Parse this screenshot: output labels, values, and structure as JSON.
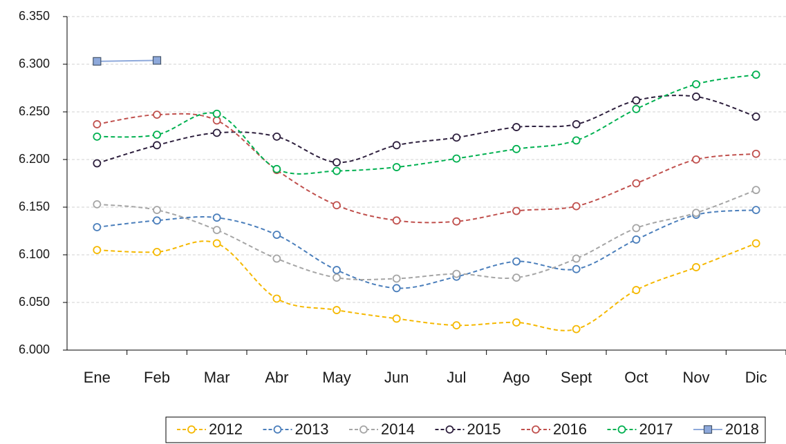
{
  "chart_data": {
    "type": "line",
    "categories": [
      "Ene",
      "Feb",
      "Mar",
      "Abr",
      "May",
      "Jun",
      "Jul",
      "Ago",
      "Sept",
      "Oct",
      "Nov",
      "Dic"
    ],
    "series": [
      {
        "name": "2012",
        "color": "#f5b800",
        "marker": "circle",
        "dashed": true,
        "values": [
          6.105,
          6.103,
          6.112,
          6.054,
          6.042,
          6.033,
          6.026,
          6.029,
          6.022,
          6.063,
          6.087,
          6.112
        ]
      },
      {
        "name": "2013",
        "color": "#4a7ebb",
        "marker": "circle",
        "dashed": true,
        "values": [
          6.129,
          6.136,
          6.139,
          6.121,
          6.084,
          6.065,
          6.077,
          6.093,
          6.085,
          6.116,
          6.142,
          6.147
        ]
      },
      {
        "name": "2014",
        "color": "#a5a5a5",
        "marker": "circle",
        "dashed": true,
        "values": [
          6.153,
          6.147,
          6.126,
          6.096,
          6.076,
          6.075,
          6.08,
          6.076,
          6.096,
          6.128,
          6.144,
          6.168
        ]
      },
      {
        "name": "2015",
        "color": "#2d1f3d",
        "marker": "circle",
        "dashed": true,
        "values": [
          6.196,
          6.215,
          6.228,
          6.224,
          6.197,
          6.215,
          6.223,
          6.234,
          6.237,
          6.262,
          6.266,
          6.245
        ]
      },
      {
        "name": "2016",
        "color": "#c0504d",
        "marker": "circle",
        "dashed": true,
        "values": [
          6.237,
          6.247,
          6.241,
          6.189,
          6.152,
          6.136,
          6.135,
          6.146,
          6.151,
          6.175,
          6.2,
          6.206
        ]
      },
      {
        "name": "2017",
        "color": "#00b050",
        "marker": "circle",
        "dashed": true,
        "values": [
          6.224,
          6.226,
          6.248,
          6.19,
          6.188,
          6.192,
          6.201,
          6.211,
          6.22,
          6.253,
          6.279,
          6.289
        ]
      },
      {
        "name": "2018",
        "color": "#8ea9db",
        "marker": "square",
        "dashed": false,
        "values": [
          6.303,
          6.304,
          null,
          null,
          null,
          null,
          null,
          null,
          null,
          null,
          null,
          null
        ]
      }
    ],
    "ylim": [
      6.0,
      6.35
    ],
    "yticks": [
      {
        "value": 6.0,
        "label": "6.000"
      },
      {
        "value": 6.05,
        "label": "6.050"
      },
      {
        "value": 6.1,
        "label": "6.100"
      },
      {
        "value": 6.15,
        "label": "6.150"
      },
      {
        "value": 6.2,
        "label": "6.200"
      },
      {
        "value": 6.25,
        "label": "6.250"
      },
      {
        "value": 6.3,
        "label": "6.300"
      },
      {
        "value": 6.35,
        "label": "6.350"
      }
    ],
    "grid": true,
    "smooth": true,
    "legend": "bottom"
  }
}
